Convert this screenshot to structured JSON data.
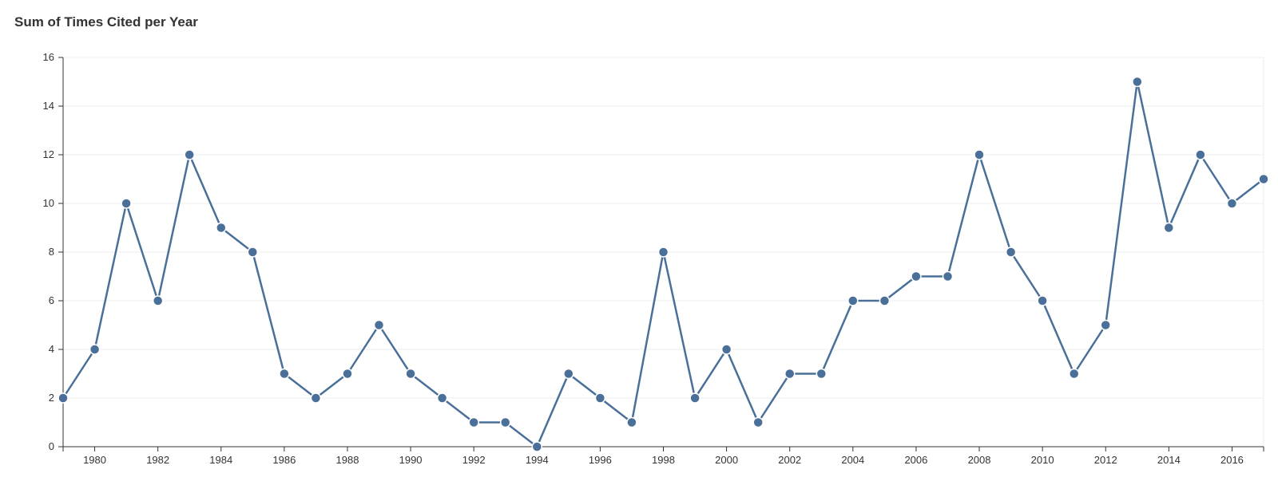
{
  "chart_data": {
    "type": "line",
    "title": "Sum of Times Cited per Year",
    "xlabel": "",
    "ylabel": "",
    "x": [
      1979,
      1980,
      1981,
      1982,
      1983,
      1984,
      1985,
      1986,
      1987,
      1988,
      1989,
      1990,
      1991,
      1992,
      1993,
      1994,
      1995,
      1996,
      1997,
      1998,
      1999,
      2000,
      2001,
      2002,
      2003,
      2004,
      2005,
      2006,
      2007,
      2008,
      2009,
      2010,
      2011,
      2012,
      2013,
      2014,
      2015,
      2016,
      2017
    ],
    "series": [
      {
        "values": [
          2,
          4,
          10,
          6,
          12,
          9,
          8,
          3,
          2,
          3,
          5,
          3,
          2,
          1,
          1,
          0,
          3,
          2,
          1,
          8,
          2,
          4,
          1,
          3,
          3,
          6,
          6,
          7,
          7,
          12,
          8,
          6,
          3,
          5,
          15,
          9,
          12,
          10,
          11
        ]
      }
    ],
    "xlim": [
      1979,
      2017
    ],
    "ylim": [
      0,
      16
    ],
    "x_ticks": [
      "1980",
      "1982",
      "1984",
      "1986",
      "1988",
      "1990",
      "1992",
      "1994",
      "1996",
      "1998",
      "2000",
      "2002",
      "2004",
      "2006",
      "2008",
      "2010",
      "2012",
      "2014",
      "2016"
    ],
    "y_ticks": [
      "0",
      "2",
      "4",
      "6",
      "8",
      "10",
      "12",
      "14",
      "16"
    ],
    "grid": true,
    "legend": "none",
    "colors": {
      "series": "#4a7099",
      "grid": "#eeeeee",
      "axis": "#333333"
    }
  }
}
